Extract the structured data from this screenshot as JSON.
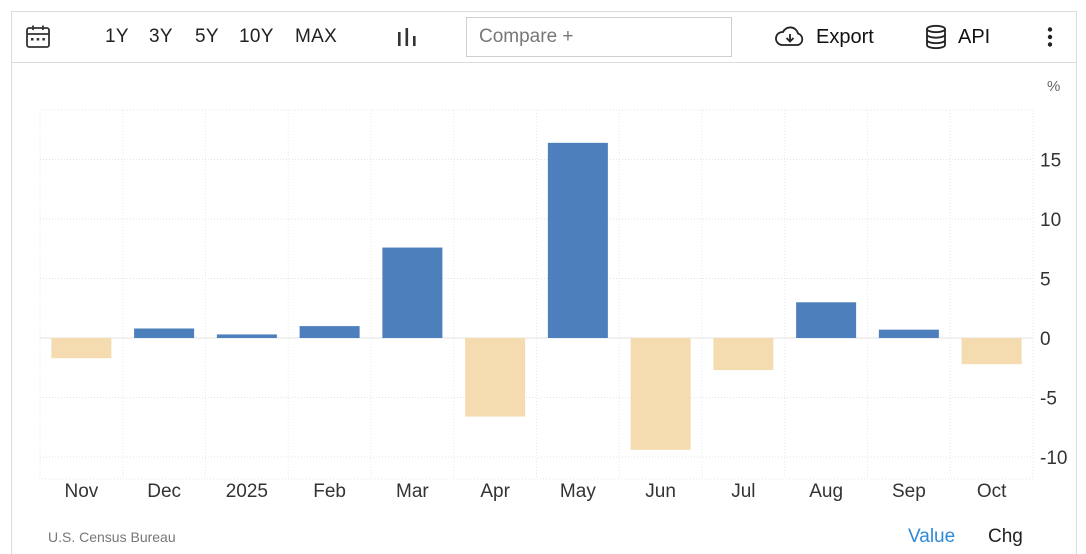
{
  "toolbar": {
    "calendar_icon": "calendar-icon",
    "ranges": [
      "1Y",
      "3Y",
      "5Y",
      "10Y",
      "MAX"
    ],
    "chart_type_icon": "bar-chart-icon",
    "compare_placeholder": "Compare +",
    "export_label": "Export",
    "export_icon": "cloud-download-icon",
    "api_label": "API",
    "api_icon": "database-icon",
    "more_icon": "vertical-dots-icon"
  },
  "footer": {
    "source": "U.S. Census Bureau",
    "value_label": "Value",
    "chg_label": "Chg",
    "active_color": "#2e8ad8"
  },
  "chart_data": {
    "type": "bar",
    "unit": "%",
    "categories": [
      "Nov",
      "Dec",
      "2025",
      "Feb",
      "Mar",
      "Apr",
      "May",
      "Jun",
      "Jul",
      "Aug",
      "Sep",
      "Oct"
    ],
    "values": [
      -1.7,
      0.8,
      0.3,
      1.0,
      7.6,
      -6.6,
      16.4,
      -9.4,
      -2.7,
      3.0,
      0.7,
      -2.2
    ],
    "ylim": [
      -10.5,
      19
    ],
    "yticks": [
      15,
      10,
      5,
      0,
      -5,
      -10
    ],
    "grid": true,
    "positive_color": "#4d7fbd",
    "negative_color": "#f4dcb0"
  }
}
